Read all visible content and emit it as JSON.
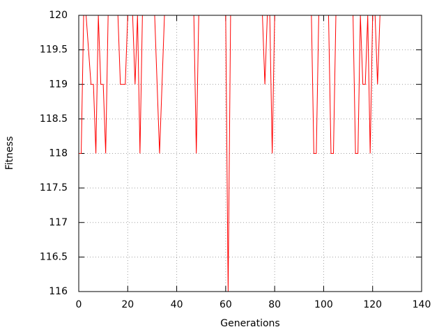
{
  "chart_data": {
    "type": "line",
    "x_label": "Generations",
    "y_label": "Fitness",
    "x": [
      0,
      1,
      2,
      3,
      4,
      5,
      6,
      7,
      8,
      9,
      10,
      11,
      12,
      13,
      14,
      15,
      16,
      17,
      18,
      19,
      20,
      21,
      22,
      23,
      24,
      25,
      26,
      27,
      28,
      29,
      30,
      31,
      32,
      33,
      34,
      35,
      36,
      37,
      38,
      39,
      40,
      41,
      42,
      43,
      44,
      45,
      46,
      47,
      48,
      49,
      50,
      51,
      52,
      53,
      54,
      55,
      56,
      57,
      58,
      59,
      60,
      61,
      62,
      63,
      64,
      65,
      66,
      67,
      68,
      69,
      70,
      71,
      72,
      73,
      74,
      75,
      76,
      77,
      78,
      79,
      80,
      81,
      82,
      83,
      84,
      85,
      86,
      87,
      88,
      89,
      90,
      91,
      92,
      93,
      94,
      95,
      96,
      97,
      98,
      99,
      100,
      101,
      102,
      103,
      104,
      105,
      106,
      107,
      108,
      109,
      110,
      111,
      112,
      113,
      114,
      115,
      116,
      117,
      118,
      119,
      120,
      121,
      122,
      123
    ],
    "values": [
      118,
      118,
      120,
      120,
      119.5,
      119,
      119,
      118,
      120,
      119,
      119,
      118,
      120,
      120,
      120,
      120,
      120,
      119,
      119,
      119,
      120,
      120,
      120,
      119,
      120,
      118,
      120,
      120,
      120,
      120,
      120,
      120,
      119,
      118,
      119,
      120,
      120,
      120,
      120,
      120,
      120,
      120,
      120,
      120,
      120,
      120,
      120,
      120,
      118,
      120,
      120,
      120,
      120,
      120,
      120,
      120,
      120,
      120,
      120,
      120,
      120,
      116,
      120,
      120,
      120,
      120,
      120,
      120,
      120,
      120,
      120,
      120,
      120,
      120,
      120,
      120,
      119,
      120,
      120,
      118,
      120,
      120,
      120,
      120,
      120,
      120,
      120,
      120,
      120,
      120,
      120,
      120,
      120,
      120,
      120,
      120,
      118,
      118,
      120,
      120,
      120,
      120,
      120,
      118,
      118,
      120,
      120,
      120,
      120,
      120,
      120,
      120,
      120,
      118,
      118,
      120,
      119,
      119,
      120,
      118,
      120,
      120,
      119,
      120
    ],
    "color": "#ff0000",
    "xlim": [
      0,
      140
    ],
    "xticks": [
      0,
      20,
      40,
      60,
      80,
      100,
      120,
      140
    ],
    "ylim": [
      116,
      120
    ],
    "yticks": [
      116,
      116.5,
      117,
      117.5,
      118,
      118.5,
      119,
      119.5,
      120
    ],
    "grid": true
  }
}
